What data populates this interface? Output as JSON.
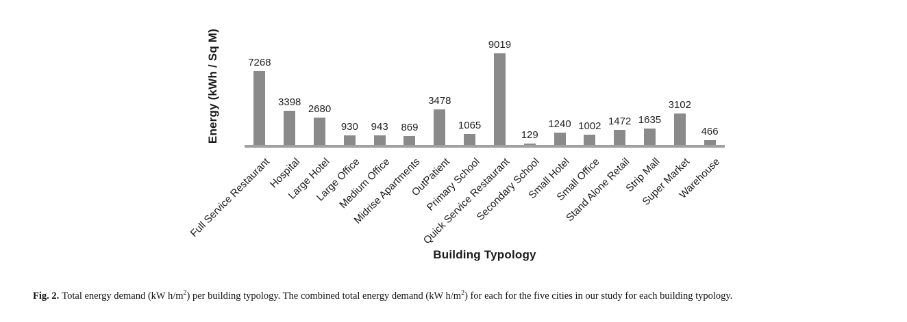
{
  "figure": {
    "caption": {
      "label": "Fig. 2.",
      "text_a": "Total energy demand (kW h/m",
      "sup_a": "2",
      "text_b": ") per building typology. The combined total energy demand (kW h/m",
      "sup_b": "2",
      "text_c": ") for each for the five cities in our study for each building typology."
    }
  },
  "chart_data": {
    "type": "bar",
    "title": "",
    "xlabel": "Building Typology",
    "ylabel": "Energy (kWh / Sq M)",
    "categories": [
      "Full Service Restaurant",
      "Hospital",
      "Large Hotel",
      "Large Office",
      "Medium Office",
      "Midrise Apartments",
      "OutPatient",
      "Primary School",
      "Quick Service Restaurant",
      "Secondary School",
      "Small Hotel",
      "Small Office",
      "Stand Alone Retail",
      "Strip Mall",
      "Super Market",
      "Warehouse"
    ],
    "values": [
      7268,
      3398,
      2680,
      930,
      943,
      869,
      3478,
      1065,
      9019,
      129,
      1240,
      1002,
      1472,
      1635,
      3102,
      466
    ],
    "data_labels": [
      true
    ],
    "ylim": [
      0,
      9019
    ],
    "grid": false,
    "legend": "none",
    "bar_color": "#8a8a8a",
    "axis_line_color": "#a0a0a0",
    "label_color": "#1f1f1f"
  }
}
